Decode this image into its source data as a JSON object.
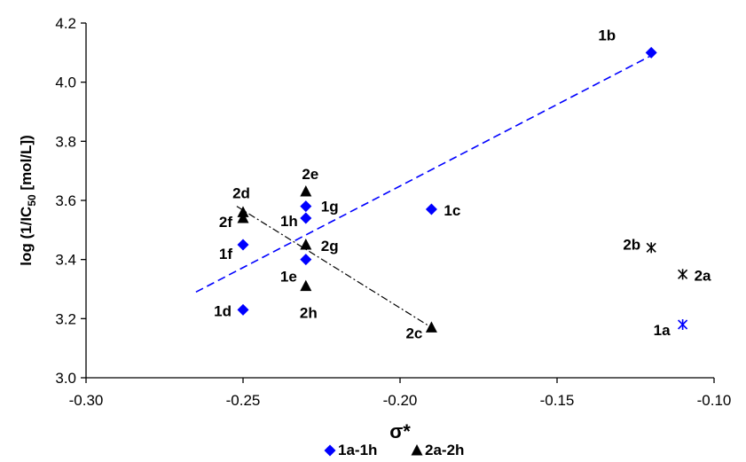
{
  "chart_data": {
    "type": "scatter",
    "xlabel": "σ*",
    "ylabel": {
      "prefix": "log (1/IC",
      "sub": "50",
      "suffix": " [mol/L])"
    },
    "xlim": [
      -0.3,
      -0.1
    ],
    "ylim": [
      3.0,
      4.2
    ],
    "x_ticks": [
      {
        "value": -0.3,
        "label": "-0.30"
      },
      {
        "value": -0.25,
        "label": "-0.25"
      },
      {
        "value": -0.2,
        "label": "-0.20"
      },
      {
        "value": -0.15,
        "label": "-0.15"
      },
      {
        "value": -0.1,
        "label": "-0.10"
      }
    ],
    "y_ticks": [
      {
        "value": 3.0,
        "label": "3.0"
      },
      {
        "value": 3.2,
        "label": "3.2"
      },
      {
        "value": 3.4,
        "label": "3.4"
      },
      {
        "value": 3.6,
        "label": "3.6"
      },
      {
        "value": 3.8,
        "label": "3.8"
      },
      {
        "value": 4.0,
        "label": "4.0"
      },
      {
        "value": 4.2,
        "label": "4.2"
      }
    ],
    "grid": false,
    "legend_position": "bottom",
    "series": [
      {
        "name": "1a-1h",
        "marker": "diamond",
        "color": "#0000ff",
        "points": [
          {
            "label": "1b",
            "x": -0.12,
            "y": 4.1
          },
          {
            "label": "1c",
            "x": -0.19,
            "y": 3.57
          },
          {
            "label": "1d",
            "x": -0.25,
            "y": 3.23
          },
          {
            "label": "1e",
            "x": -0.23,
            "y": 3.4
          },
          {
            "label": "1f",
            "x": -0.25,
            "y": 3.45
          },
          {
            "label": "1g",
            "x": -0.23,
            "y": 3.58
          },
          {
            "label": "1h",
            "x": -0.23,
            "y": 3.54
          }
        ]
      },
      {
        "name": "2a-2h",
        "marker": "triangle",
        "color": "#000000",
        "points": [
          {
            "label": "2c",
            "x": -0.19,
            "y": 3.17
          },
          {
            "label": "2d",
            "x": -0.25,
            "y": 3.56
          },
          {
            "label": "2e",
            "x": -0.23,
            "y": 3.63
          },
          {
            "label": "2f",
            "x": -0.25,
            "y": 3.54
          },
          {
            "label": "2g",
            "x": -0.23,
            "y": 3.45
          },
          {
            "label": "2h",
            "x": -0.23,
            "y": 3.31
          }
        ]
      },
      {
        "name": "",
        "marker": "asterisk",
        "color": "#0000ff",
        "points": [
          {
            "label": "1a",
            "x": -0.11,
            "y": 3.18
          }
        ]
      },
      {
        "name": "",
        "marker": "asterisk",
        "color": "#000000",
        "points": [
          {
            "label": "2a",
            "x": -0.11,
            "y": 3.35
          },
          {
            "label": "2b",
            "x": -0.12,
            "y": 3.44
          }
        ]
      }
    ],
    "trendlines": [
      {
        "series": "1a-1h",
        "style": "dashed",
        "color": "#0000ff",
        "x": [
          -0.265,
          -0.12
        ],
        "y": [
          3.29,
          4.09
        ]
      },
      {
        "series": "2a-2h",
        "style": "dash-dot",
        "color": "#000000",
        "x": [
          -0.252,
          -0.19
        ],
        "y": [
          3.58,
          3.17
        ]
      }
    ],
    "legend": [
      {
        "label": "1a-1h",
        "marker": "diamond",
        "color": "#0000ff"
      },
      {
        "label": "2a-2h",
        "marker": "triangle",
        "color": "#000000"
      }
    ]
  }
}
